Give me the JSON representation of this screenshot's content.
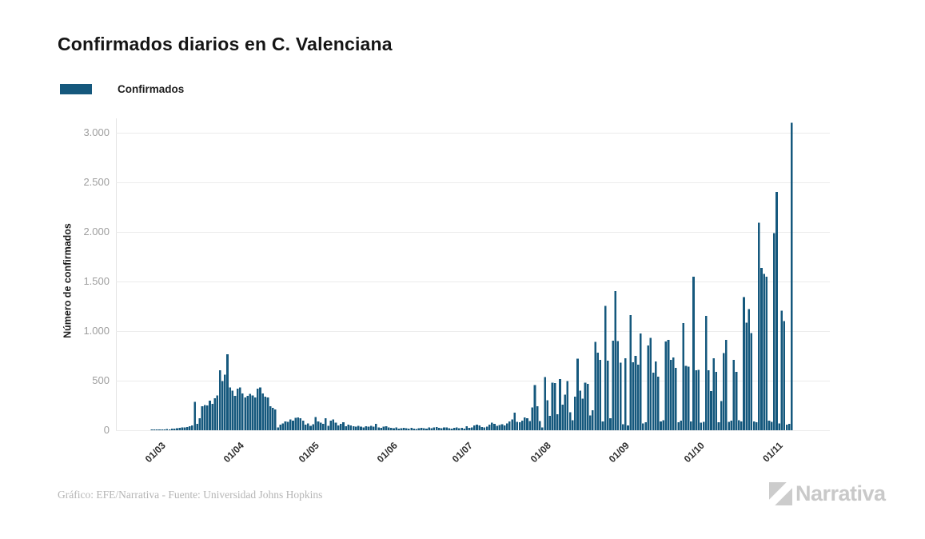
{
  "header": {
    "title": "Confirmados diarios en C. Valenciana"
  },
  "legend": {
    "label": "Confirmados",
    "color": "#15587D"
  },
  "chart_data": {
    "type": "bar",
    "title": "Confirmados diarios en C. Valenciana",
    "ylabel": "Número de confirmados",
    "xlabel": "",
    "series_name": "Confirmados",
    "bar_color": "#15587D",
    "grid_color": "#ececec",
    "grid": true,
    "legend_position": "top-left",
    "ylim": [
      0,
      3100
    ],
    "y_ticks": [
      {
        "value": 0,
        "label": "0"
      },
      {
        "value": 500,
        "label": "500"
      },
      {
        "value": 1000,
        "label": "1.000"
      },
      {
        "value": 1500,
        "label": "1.500"
      },
      {
        "value": 2000,
        "label": "2.000"
      },
      {
        "value": 2500,
        "label": "2.500"
      },
      {
        "value": 3000,
        "label": "3.000"
      }
    ],
    "x_unit": "day",
    "x_start_label": "01/03",
    "x_ticks": [
      {
        "label": "01/03",
        "day": 0
      },
      {
        "label": "01/04",
        "day": 31
      },
      {
        "label": "01/05",
        "day": 61
      },
      {
        "label": "01/06",
        "day": 92
      },
      {
        "label": "01/07",
        "day": 122
      },
      {
        "label": "01/08",
        "day": 153
      },
      {
        "label": "01/09",
        "day": 184
      },
      {
        "label": "01/10",
        "day": 214
      },
      {
        "label": "01/11",
        "day": 245
      }
    ],
    "values": [
      2,
      3,
      5,
      6,
      8,
      10,
      12,
      10,
      15,
      18,
      22,
      25,
      28,
      30,
      32,
      40,
      50,
      285,
      65,
      120,
      240,
      255,
      250,
      300,
      267,
      321,
      350,
      605,
      495,
      560,
      765,
      430,
      400,
      345,
      420,
      430,
      370,
      330,
      345,
      365,
      350,
      330,
      420,
      430,
      370,
      340,
      330,
      240,
      225,
      210,
      30,
      55,
      70,
      90,
      85,
      110,
      95,
      125,
      130,
      120,
      95,
      55,
      70,
      45,
      60,
      135,
      90,
      75,
      65,
      120,
      45,
      95,
      110,
      75,
      50,
      65,
      80,
      40,
      55,
      48,
      42,
      35,
      45,
      38,
      30,
      40,
      35,
      45,
      38,
      65,
      30,
      25,
      35,
      40,
      30,
      25,
      20,
      28,
      18,
      22,
      25,
      20,
      15,
      24,
      18,
      12,
      20,
      25,
      22,
      15,
      28,
      20,
      30,
      32,
      25,
      20,
      28,
      30,
      22,
      15,
      25,
      28,
      20,
      25,
      18,
      40,
      25,
      30,
      50,
      55,
      48,
      32,
      30,
      35,
      55,
      75,
      65,
      45,
      52,
      60,
      48,
      70,
      90,
      110,
      177,
      85,
      80,
      97,
      131,
      120,
      91,
      230,
      455,
      240,
      91,
      30,
      535,
      301,
      145,
      481,
      475,
      160,
      516,
      258,
      360,
      494,
      180,
      100,
      340,
      723,
      401,
      320,
      481,
      468,
      150,
      200,
      890,
      782,
      710,
      90,
      1255,
      700,
      120,
      905,
      1404,
      900,
      680,
      60,
      725,
      50,
      1160,
      686,
      750,
      660,
      975,
      70,
      80,
      855,
      930,
      580,
      695,
      540,
      90,
      100,
      895,
      911,
      710,
      734,
      629,
      80,
      95,
      1081,
      650,
      640,
      90,
      1548,
      605,
      607,
      75,
      85,
      1153,
      605,
      395,
      726,
      589,
      80,
      293,
      777,
      911,
      85,
      95,
      710,
      590,
      100,
      90,
      1341,
      1086,
      1220,
      980,
      90,
      80,
      2094,
      1637,
      1575,
      1548,
      95,
      85,
      1986,
      2403,
      70,
      1207,
      1099,
      55,
      65,
      3102
    ]
  },
  "footer": {
    "credit": "Gráfico: EFE/Narrativa - Fuente: Universidad Johns Hopkins",
    "brand": "Narrativa"
  }
}
